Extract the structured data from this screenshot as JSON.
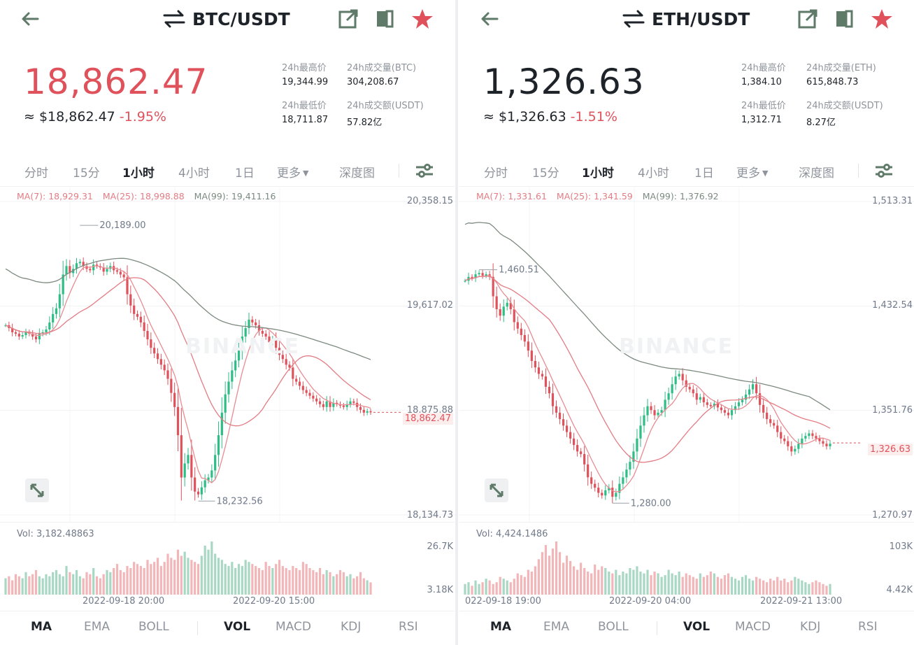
{
  "panels": [
    {
      "pair": "BTC/USDT",
      "price": "18,862.47",
      "price_color": "#e0525b",
      "approx": "≈ $18,862.47",
      "change": "-1.95%",
      "stats": {
        "high_label": "24h最高价",
        "high_value": "19,344.99",
        "vol_base_label": "24h成交量(BTC)",
        "vol_base_value": "304,208.67",
        "low_label": "24h最低价",
        "low_value": "18,711.87",
        "vol_quote_label": "24h成交额(USDT)",
        "vol_quote_value": "57.82亿"
      },
      "ma": {
        "ma7": "MA(7): 18,929.31",
        "ma25": "MA(25): 18,998.88",
        "ma99": "MA(99): 19,411.16"
      },
      "y_labels": [
        "20,358.15",
        "19,617.02",
        "18,875.88",
        "18,134.73"
      ],
      "y_range": [
        18134.73,
        20358.15
      ],
      "current_price_tag": "18,862.47",
      "current_price": 18862.47,
      "annotations": {
        "high": "20,189.00",
        "low": "18,232.56",
        "high_value": 20189.0,
        "low_value": 18232.56
      },
      "vol_label": "Vol: 3,182.48863",
      "vol_axis": [
        "26.7K",
        "3.18K"
      ],
      "x_labels": [
        "2022-09-18 20:00",
        "2022-09-20 15:00"
      ],
      "watermark": "BINANCE",
      "candles_close": [
        19480,
        19460,
        19430,
        19420,
        19400,
        19410,
        19430,
        19420,
        19400,
        19380,
        19420,
        19430,
        19450,
        19500,
        19560,
        19600,
        19700,
        19840,
        19900,
        19850,
        19880,
        19920,
        19930,
        19900,
        19880,
        19870,
        19910,
        19900,
        19890,
        19860,
        19880,
        19900,
        19870,
        19860,
        19840,
        19820,
        19700,
        19620,
        19560,
        19540,
        19500,
        19440,
        19380,
        19320,
        19280,
        19240,
        19200,
        19160,
        19100,
        19000,
        18900,
        18700,
        18400,
        18500,
        18560,
        18400,
        18300,
        18280,
        18330,
        18380,
        18400,
        18450,
        18560,
        18700,
        18860,
        18990,
        19080,
        19160,
        19230,
        19300,
        19400,
        19460,
        19520,
        19500,
        19480,
        19440,
        19420,
        19400,
        19360,
        19380,
        19320,
        19270,
        19240,
        19200,
        19180,
        19100,
        19080,
        19050,
        19020,
        19000,
        18980,
        18960,
        18940,
        18920,
        18900,
        18940,
        18900,
        18930,
        18920,
        18910,
        18900,
        18920,
        18940,
        18930,
        18900,
        18880,
        18860,
        18870,
        18862
      ],
      "volumes": [
        8,
        9,
        7,
        10,
        9,
        8,
        11,
        9,
        10,
        12,
        9,
        8,
        10,
        9,
        11,
        12,
        10,
        9,
        14,
        11,
        10,
        12,
        9,
        8,
        11,
        10,
        13,
        9,
        8,
        10,
        12,
        11,
        13,
        15,
        12,
        11,
        14,
        13,
        16,
        15,
        14,
        13,
        17,
        15,
        16,
        18,
        14,
        16,
        20,
        18,
        17,
        22,
        19,
        21,
        18,
        17,
        16,
        15,
        19,
        24,
        22,
        26,
        20,
        18,
        17,
        15,
        14,
        16,
        13,
        15,
        14,
        17,
        16,
        15,
        14,
        13,
        12,
        16,
        14,
        13,
        15,
        17,
        14,
        13,
        12,
        14,
        13,
        12,
        16,
        15,
        13,
        12,
        11,
        13,
        10,
        12,
        11,
        9,
        10,
        12,
        11,
        9,
        10,
        8,
        9,
        11,
        8,
        7,
        6
      ]
    },
    {
      "pair": "ETH/USDT",
      "price": "1,326.63",
      "price_color": "#1e2329",
      "approx": "≈ $1,326.63",
      "change": "-1.51%",
      "stats": {
        "high_label": "24h最高价",
        "high_value": "1,384.10",
        "vol_base_label": "24h成交量(ETH)",
        "vol_base_value": "615,848.73",
        "low_label": "24h最低价",
        "low_value": "1,312.71",
        "vol_quote_label": "24h成交额(USDT)",
        "vol_quote_value": "8.27亿"
      },
      "ma": {
        "ma7": "MA(7): 1,331.61",
        "ma25": "MA(25): 1,341.59",
        "ma99": "MA(99): 1,376.92"
      },
      "y_labels": [
        "1,513.31",
        "1,432.54",
        "1,351.76",
        "1,270.97"
      ],
      "y_range": [
        1270.97,
        1513.31
      ],
      "current_price_tag": "1,326.63",
      "current_price": 1326.63,
      "annotations": {
        "high": "1,460.51",
        "low": "1,280.00",
        "high_value": 1460.51,
        "low_value": 1280.0
      },
      "vol_label": "Vol: 4,424.1486",
      "vol_axis": [
        "103K",
        "4.42K"
      ],
      "x_labels": [
        "022-09-18 19:00",
        "2022-09-20 04:00",
        "2022-09-21 13:00"
      ],
      "watermark": "BINANCE",
      "candles_close": [
        1452,
        1455,
        1454,
        1457,
        1458,
        1456,
        1457,
        1455,
        1440,
        1430,
        1425,
        1432,
        1435,
        1430,
        1420,
        1415,
        1410,
        1405,
        1398,
        1390,
        1385,
        1380,
        1378,
        1370,
        1365,
        1355,
        1350,
        1345,
        1340,
        1335,
        1330,
        1325,
        1320,
        1318,
        1310,
        1300,
        1295,
        1292,
        1288,
        1286,
        1290,
        1292,
        1285,
        1288,
        1295,
        1300,
        1306,
        1312,
        1320,
        1330,
        1340,
        1348,
        1355,
        1352,
        1348,
        1350,
        1352,
        1360,
        1365,
        1372,
        1378,
        1380,
        1375,
        1370,
        1368,
        1365,
        1360,
        1362,
        1358,
        1356,
        1355,
        1357,
        1354,
        1352,
        1350,
        1348,
        1352,
        1355,
        1358,
        1360,
        1364,
        1368,
        1372,
        1365,
        1356,
        1350,
        1345,
        1342,
        1340,
        1335,
        1330,
        1328,
        1324,
        1320,
        1322,
        1326,
        1330,
        1332,
        1334,
        1332,
        1330,
        1328,
        1326,
        1324,
        1326
      ],
      "volumes": [
        6,
        7,
        5,
        8,
        6,
        7,
        9,
        8,
        6,
        7,
        10,
        9,
        8,
        7,
        9,
        12,
        11,
        10,
        14,
        13,
        16,
        20,
        24,
        28,
        22,
        26,
        30,
        24,
        18,
        22,
        19,
        16,
        14,
        18,
        15,
        13,
        12,
        17,
        14,
        16,
        15,
        13,
        12,
        14,
        11,
        13,
        12,
        15,
        14,
        16,
        13,
        12,
        14,
        11,
        13,
        12,
        10,
        11,
        14,
        12,
        11,
        13,
        10,
        12,
        11,
        10,
        9,
        12,
        10,
        11,
        13,
        12,
        10,
        9,
        11,
        12,
        10,
        9,
        8,
        10,
        11,
        9,
        8,
        10,
        9,
        8,
        7,
        9,
        8,
        10,
        8,
        9,
        7,
        8,
        10,
        9,
        8,
        7,
        6,
        7,
        8,
        7,
        6,
        5,
        6
      ]
    }
  ],
  "timeframe_tabs": [
    "分时",
    "15分",
    "1小时",
    "4小时",
    "1日",
    "更多"
  ],
  "active_timeframe": "1小时",
  "depth_tab": "深度图",
  "indicator_tabs": [
    "MA",
    "EMA",
    "BOLL",
    "VOL",
    "MACD",
    "KDJ",
    "RSI"
  ],
  "active_indicators": [
    "MA",
    "VOL"
  ],
  "colors": {
    "up": "#2ebd85",
    "down": "#e0525b",
    "ma7": "#e88c93",
    "ma25": "#e37c84",
    "ma99": "#7d8a7f",
    "star": "#e0525b",
    "icon_green": "#5a8a6a"
  },
  "icons": [
    "back-arrow-icon",
    "swap-icon",
    "share-icon",
    "book-icon",
    "star-icon",
    "settings-sliders-icon",
    "expand-icon"
  ]
}
